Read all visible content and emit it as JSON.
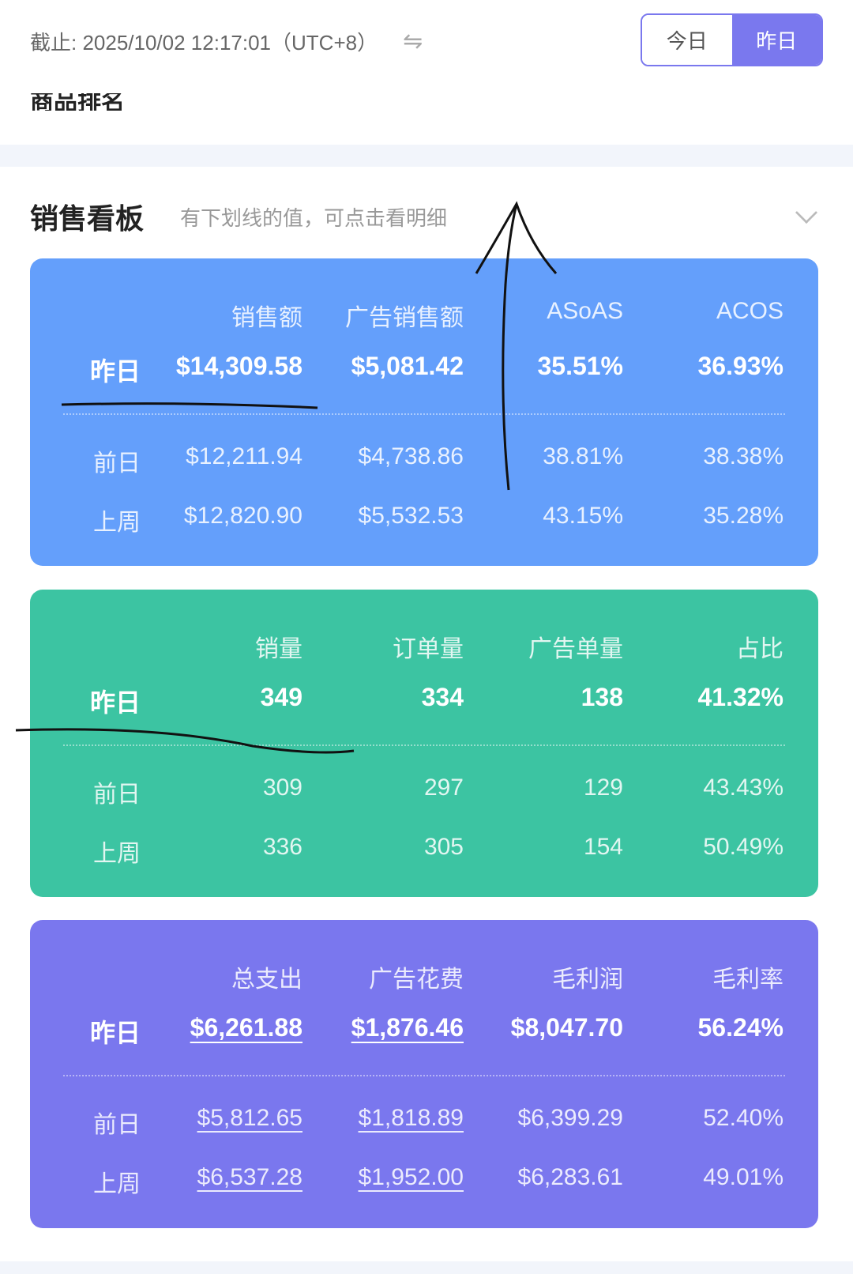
{
  "header": {
    "cutoff": "截止: 2025/10/02 12:17:01（UTC+8）",
    "swap_icon": "swap-arrows-icon",
    "toggle": {
      "today": "今日",
      "yesterday": "昨日",
      "selected": "yesterday"
    }
  },
  "partial_section_title": "商品排名",
  "section": {
    "title": "销售看板",
    "hint": "有下划线的值，可点击看明细"
  },
  "colors": {
    "card_sales": "#649ffb",
    "card_volume": "#3cc4a2",
    "card_cost": "#7a77ee",
    "accent": "#7a78ee"
  },
  "cards": [
    {
      "headers": [
        "销售额",
        "广告销售额",
        "ASoAS",
        "ACOS"
      ],
      "rows": [
        {
          "label": "昨日",
          "values": [
            "$14,309.58",
            "$5,081.42",
            "35.51%",
            "36.93%"
          ]
        },
        {
          "label": "前日",
          "values": [
            "$12,211.94",
            "$4,738.86",
            "38.81%",
            "38.38%"
          ]
        },
        {
          "label": "上周",
          "values": [
            "$12,820.90",
            "$5,532.53",
            "43.15%",
            "35.28%"
          ]
        }
      ]
    },
    {
      "headers": [
        "销量",
        "订单量",
        "广告单量",
        "占比"
      ],
      "rows": [
        {
          "label": "昨日",
          "values": [
            "349",
            "334",
            "138",
            "41.32%"
          ]
        },
        {
          "label": "前日",
          "values": [
            "309",
            "297",
            "129",
            "43.43%"
          ]
        },
        {
          "label": "上周",
          "values": [
            "336",
            "305",
            "154",
            "50.49%"
          ]
        }
      ]
    },
    {
      "headers": [
        "总支出",
        "广告花费",
        "毛利润",
        "毛利率"
      ],
      "rows": [
        {
          "label": "昨日",
          "values": [
            "$6,261.88",
            "$1,876.46",
            "$8,047.70",
            "56.24%"
          ]
        },
        {
          "label": "前日",
          "values": [
            "$5,812.65",
            "$1,818.89",
            "$6,399.29",
            "52.40%"
          ]
        },
        {
          "label": "上周",
          "values": [
            "$6,537.28",
            "$1,952.00",
            "$6,283.61",
            "49.01%"
          ]
        }
      ]
    }
  ]
}
